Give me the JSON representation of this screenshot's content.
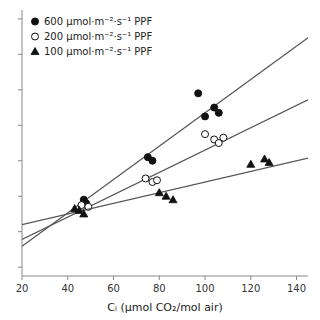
{
  "chart_data": {
    "type": "scatter",
    "xlabel": "Cᵢ (μmol CO₂/mol air)",
    "xlim": [
      20,
      145
    ],
    "xticks": [
      20,
      40,
      60,
      80,
      100,
      120,
      140
    ],
    "ylim": [
      -0.5,
      14.5
    ],
    "yticks": [
      0,
      2,
      4,
      6,
      8,
      10,
      12,
      14
    ],
    "tick_labels": "x",
    "grid": false,
    "legend": "upper left",
    "series": [
      {
        "type": "line",
        "color": "#555555",
        "x": [
          20,
          145
        ],
        "values": [
          1.18,
          12.93
        ]
      },
      {
        "type": "scatter",
        "name": "600 μmol·m⁻²·s⁻¹ PPF",
        "color": "#111111",
        "marker": "circle",
        "x": [
          47,
          48,
          75,
          77,
          97,
          100,
          104,
          106
        ],
        "values": [
          3.8,
          3.6,
          6.2,
          6.0,
          9.8,
          8.5,
          9.0,
          8.7
        ]
      },
      {
        "type": "line",
        "color": "#555555",
        "x": [
          20,
          145
        ],
        "values": [
          1.56,
          9.435
        ]
      },
      {
        "type": "scatter",
        "name": "200 μmol·m⁻²·s⁻¹ PPF",
        "color": "#111111",
        "marker": "circle-open",
        "x": [
          46,
          49,
          74,
          77,
          79,
          100,
          104,
          106,
          108
        ],
        "values": [
          3.5,
          3.4,
          5.0,
          4.8,
          4.9,
          7.5,
          7.2,
          7.0,
          7.3
        ]
      },
      {
        "type": "line",
        "color": "#555555",
        "x": [
          20,
          145
        ],
        "values": [
          2.4,
          6.15
        ]
      },
      {
        "type": "scatter",
        "name": "100 μmol·m⁻²·s⁻¹ PPF",
        "color": "#111111",
        "marker": "triangle",
        "x": [
          43,
          45,
          47,
          80,
          83,
          86,
          120,
          126,
          128
        ],
        "values": [
          3.3,
          3.2,
          3.0,
          4.2,
          4.0,
          3.8,
          5.8,
          6.1,
          5.9
        ]
      }
    ]
  }
}
